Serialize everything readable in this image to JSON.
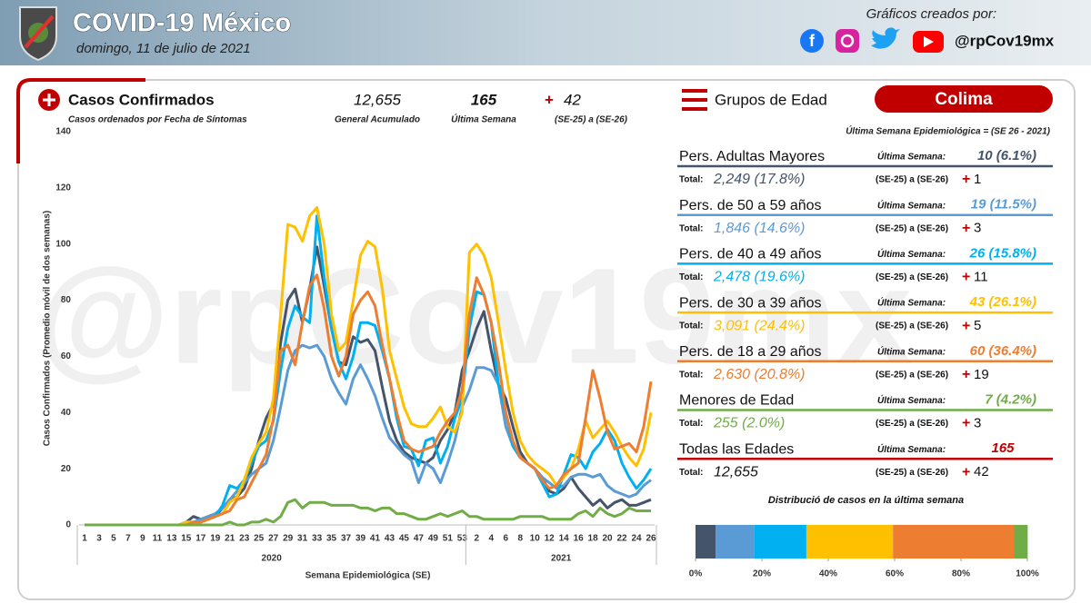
{
  "header": {
    "title": "COVID-19 México",
    "date": "domingo, 11 de julio de 2021",
    "credit": "Gráficos creados por:",
    "handle": "@rpCov19mx",
    "watermark": "@rpCov19mx"
  },
  "summary": {
    "title": "Casos Confirmados",
    "subtitle": "Casos ordenados por Fecha de Síntomas",
    "total": "12,655",
    "total_label": "General Acumulado",
    "last_week": 165,
    "last_week_label": "Última Semana",
    "plus": "+",
    "change": 42,
    "change_label": "(SE-25) a (SE-26)"
  },
  "age_panel": {
    "title": "Grupos de Edad",
    "state": "Colima",
    "subtitle": "Última Semana Epidemiológica = (SE 26 - 2021)",
    "labels": {
      "last_week": "Última Semana:",
      "total": "Total:",
      "range": "(SE-25) a (SE-26)",
      "plus": "+"
    },
    "rows": [
      {
        "last_week": "10 (6.1%)",
        "total": "2,249 (17.8%)",
        "change": 1
      },
      {
        "last_week": "19 (11.5%)",
        "total": "1,846 (14.6%)",
        "change": 3
      },
      {
        "last_week": "26 (15.8%)",
        "total": "2,478 (19.6%)",
        "change": 11
      },
      {
        "last_week": "43 (26.1%)",
        "total": "3,091 (24.4%)",
        "change": 5
      },
      {
        "last_week": "60 (36.4%)",
        "total": "2,630 (20.8%)",
        "change": 19
      },
      {
        "last_week": "7 (4.2%)",
        "total": "255 (2.0%)",
        "change": 3
      }
    ],
    "all": {
      "name": "Todas las Edades",
      "last_week": 165,
      "total": "12,655",
      "change": 42,
      "color": "#c00000"
    }
  },
  "chart_data": [
    {
      "type": "line",
      "ylabel": "Casos Confirmados (Promedio móvil de dos semanas)",
      "xlabel": "Semana Epidemiológica (SE)",
      "year_labels": [
        "2020",
        "2021"
      ],
      "ylim": [
        0,
        140
      ],
      "yticks": [
        0,
        20,
        40,
        60,
        80,
        100,
        120,
        140
      ],
      "categories": [
        "1",
        null,
        "3",
        null,
        "5",
        null,
        "7",
        null,
        "9",
        null,
        "11",
        null,
        "13",
        null,
        "15",
        null,
        "17",
        null,
        "19",
        null,
        "21",
        null,
        "23",
        null,
        "25",
        null,
        "27",
        null,
        "29",
        null,
        "31",
        null,
        "33",
        null,
        "35",
        null,
        "37",
        null,
        "39",
        null,
        "41",
        null,
        "43",
        null,
        "45",
        null,
        "47",
        null,
        "49",
        null,
        "51",
        null,
        "53",
        null,
        "2",
        null,
        "4",
        null,
        "6",
        null,
        "8",
        null,
        "10",
        null,
        "12",
        null,
        "14",
        null,
        "16",
        null,
        "18",
        null,
        "20",
        null,
        "22",
        null,
        "24",
        null,
        "26"
      ],
      "series": [
        {
          "name": "Pers. Adultas Mayores",
          "color": "#44546a",
          "values": [
            0,
            0,
            0,
            0,
            0,
            0,
            0,
            0,
            0,
            0,
            0,
            0,
            0,
            0,
            1,
            3,
            2,
            2,
            3,
            6,
            9,
            10,
            13,
            20,
            30,
            38,
            43,
            65,
            80,
            84,
            72,
            84,
            99,
            85,
            70,
            58,
            57,
            67,
            65,
            66,
            62,
            49,
            37,
            30,
            26,
            24,
            23,
            22,
            24,
            30,
            34,
            40,
            55,
            62,
            70,
            76,
            62,
            50,
            45,
            35,
            26,
            22,
            20,
            17,
            12,
            11,
            13,
            17,
            13,
            10,
            7,
            9,
            6,
            8,
            9,
            7,
            7,
            8,
            9
          ]
        },
        {
          "name": "Pers. de 50 a 59 años",
          "color": "#5b9bd5",
          "values": [
            0,
            0,
            0,
            0,
            0,
            0,
            0,
            0,
            0,
            0,
            0,
            0,
            0,
            0,
            1,
            1,
            2,
            3,
            4,
            6,
            9,
            12,
            15,
            18,
            20,
            22,
            30,
            42,
            55,
            62,
            64,
            63,
            64,
            60,
            52,
            47,
            43,
            52,
            57,
            52,
            46,
            38,
            31,
            28,
            25,
            23,
            15,
            22,
            20,
            15,
            22,
            30,
            42,
            48,
            56,
            56,
            55,
            50,
            35,
            28,
            24,
            22,
            20,
            17,
            15,
            13,
            14,
            17,
            18,
            18,
            17,
            18,
            14,
            12,
            11,
            10,
            11,
            14,
            16
          ]
        },
        {
          "name": "Pers. de 40 a 49 años",
          "color": "#00b0f0",
          "values": [
            0,
            0,
            0,
            0,
            0,
            0,
            0,
            0,
            0,
            0,
            0,
            0,
            0,
            0,
            1,
            1,
            1,
            2,
            3,
            7,
            14,
            13,
            16,
            22,
            28,
            30,
            37,
            55,
            70,
            78,
            74,
            72,
            110,
            88,
            70,
            58,
            52,
            60,
            72,
            72,
            71,
            62,
            52,
            38,
            28,
            27,
            21,
            30,
            31,
            22,
            28,
            38,
            45,
            70,
            83,
            82,
            72,
            50,
            40,
            28,
            24,
            22,
            20,
            15,
            10,
            11,
            18,
            25,
            24,
            20,
            26,
            29,
            34,
            30,
            22,
            17,
            13,
            16,
            20
          ]
        },
        {
          "name": "Pers. de 30 a 39 años",
          "color": "#ffc000",
          "values": [
            0,
            0,
            0,
            0,
            0,
            0,
            0,
            0,
            0,
            0,
            0,
            0,
            0,
            0,
            1,
            1,
            1,
            2,
            3,
            4,
            8,
            10,
            16,
            24,
            29,
            33,
            45,
            75,
            107,
            106,
            101,
            110,
            113,
            100,
            75,
            62,
            65,
            80,
            96,
            101,
            99,
            84,
            62,
            52,
            42,
            36,
            35,
            35,
            38,
            42,
            35,
            33,
            40,
            97,
            100,
            96,
            88,
            72,
            55,
            40,
            30,
            25,
            22,
            20,
            18,
            14,
            17,
            20,
            27,
            37,
            31,
            34,
            37,
            33,
            28,
            24,
            21,
            27,
            40
          ]
        },
        {
          "name": "Pers. de 18 a 29 años",
          "color": "#ed7d31",
          "values": [
            0,
            0,
            0,
            0,
            0,
            0,
            0,
            0,
            0,
            0,
            0,
            0,
            0,
            0,
            0,
            1,
            1,
            2,
            3,
            4,
            5,
            9,
            10,
            15,
            20,
            25,
            38,
            62,
            64,
            57,
            72,
            85,
            89,
            77,
            60,
            53,
            60,
            75,
            80,
            83,
            78,
            64,
            52,
            40,
            30,
            27,
            26,
            27,
            28,
            33,
            37,
            40,
            48,
            75,
            88,
            82,
            72,
            58,
            40,
            30,
            24,
            22,
            20,
            16,
            13,
            14,
            18,
            20,
            22,
            38,
            55,
            45,
            33,
            27,
            28,
            29,
            26,
            35,
            51
          ]
        },
        {
          "name": "Menores de Edad",
          "color": "#70ad47",
          "values": [
            0,
            0,
            0,
            0,
            0,
            0,
            0,
            0,
            0,
            0,
            0,
            0,
            0,
            0,
            0,
            0,
            0,
            0,
            0,
            0,
            1,
            0,
            0,
            1,
            1,
            2,
            1,
            3,
            8,
            9,
            6,
            8,
            8,
            8,
            7,
            7,
            7,
            7,
            6,
            6,
            5,
            6,
            6,
            4,
            4,
            3,
            2,
            2,
            3,
            4,
            3,
            4,
            5,
            3,
            3,
            2,
            2,
            2,
            2,
            2,
            3,
            3,
            3,
            3,
            2,
            2,
            2,
            2,
            4,
            5,
            3,
            6,
            4,
            3,
            4,
            6,
            5,
            5,
            5
          ]
        }
      ]
    },
    {
      "type": "stacked_bar",
      "title": "Distribució de casos en la última semana",
      "xlim": [
        0,
        100
      ],
      "xticks": [
        {
          "value": 0,
          "label": "0%"
        },
        {
          "value": 20,
          "label": "20%"
        },
        {
          "value": 40,
          "label": "40%"
        },
        {
          "value": 60,
          "label": "60%"
        },
        {
          "value": 80,
          "label": "80%"
        },
        {
          "value": 100,
          "label": "100%"
        }
      ],
      "series": [
        {
          "color": "#44546a",
          "values": [
            6.1
          ]
        },
        {
          "color": "#5b9bd5",
          "values": [
            11.5
          ]
        },
        {
          "color": "#00b0f0",
          "values": [
            15.8
          ]
        },
        {
          "color": "#ffc000",
          "values": [
            26.1
          ]
        },
        {
          "color": "#ed7d31",
          "values": [
            36.4
          ]
        },
        {
          "color": "#70ad47",
          "values": [
            4.2
          ]
        }
      ]
    }
  ]
}
